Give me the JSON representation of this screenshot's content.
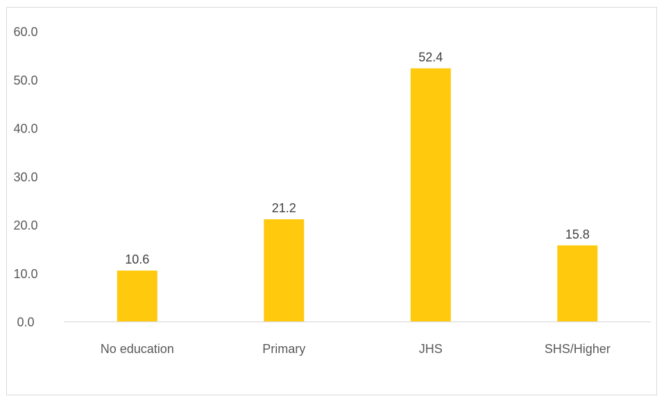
{
  "chart_data": {
    "type": "bar",
    "categories": [
      "No education",
      "Primary",
      "JHS",
      "SHS/Higher"
    ],
    "values": [
      10.6,
      21.2,
      52.4,
      15.8
    ],
    "data_labels": [
      "10.6",
      "21.2",
      "52.4",
      "15.8"
    ],
    "yticks": [
      "0.0",
      "10.0",
      "20.0",
      "30.0",
      "40.0",
      "50.0",
      "60.0"
    ],
    "ylim": [
      0,
      60
    ],
    "bar_color": "#FFC90E",
    "axis_color": "#D9D9D9",
    "grid": false,
    "legend": "none"
  }
}
